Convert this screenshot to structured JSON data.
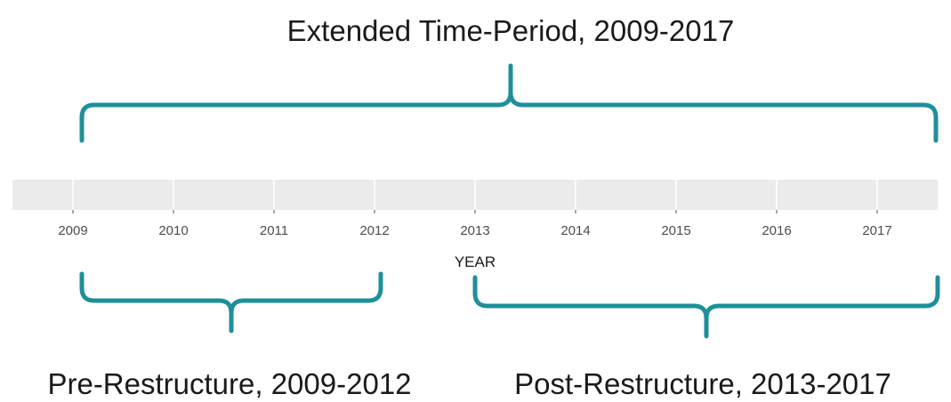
{
  "title": "Extended Time-Period, 2009-2017",
  "axis": {
    "label": "YEAR",
    "ticks": [
      "2009",
      "2010",
      "2011",
      "2012",
      "2013",
      "2014",
      "2015",
      "2016",
      "2017"
    ]
  },
  "left_brace": {
    "label": "Pre-Restructure, 2009-2012"
  },
  "right_brace": {
    "label": "Post-Restructure, 2013-2017"
  }
}
